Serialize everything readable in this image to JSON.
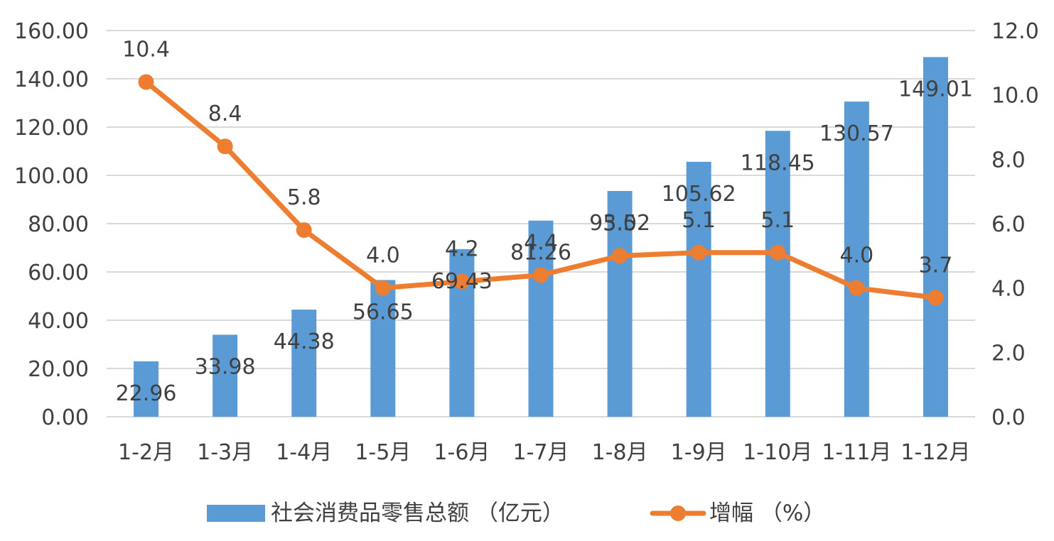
{
  "chart_data": {
    "type": "bar",
    "title": "",
    "categories": [
      "1-2月",
      "1-3月",
      "1-4月",
      "1-5月",
      "1-6月",
      "1-7月",
      "1-8月",
      "1-9月",
      "1-10月",
      "1-11月",
      "1-12月"
    ],
    "series": [
      {
        "name": "社会消费品零售总额 （亿元）",
        "type": "bar",
        "axis": "left",
        "color": "#5b9bd5",
        "values": [
          22.96,
          33.98,
          44.38,
          56.65,
          69.43,
          81.26,
          93.52,
          105.62,
          118.45,
          130.57,
          149.01
        ],
        "labels": [
          "22.96",
          "33.98",
          "44.38",
          "56.65",
          "69.43",
          "81.26",
          "93.52",
          "105.62",
          "118.45",
          "130.57",
          "149.01"
        ]
      },
      {
        "name": "增幅 （%）",
        "type": "line",
        "axis": "right",
        "color": "#ed7d31",
        "values": [
          10.4,
          8.4,
          5.8,
          4.0,
          4.2,
          4.4,
          5.0,
          5.1,
          5.1,
          4.0,
          3.7
        ],
        "labels": [
          "10.4",
          "8.4",
          "5.8",
          "4.0",
          "4.2",
          "4.4",
          "5.0",
          "5.1",
          "5.1",
          "4.0",
          "3.7"
        ]
      }
    ],
    "y_left": {
      "range": [
        0,
        160
      ],
      "ticks": [
        0,
        20,
        40,
        60,
        80,
        100,
        120,
        140,
        160
      ],
      "tick_labels": [
        "0.00",
        "20.00",
        "40.00",
        "60.00",
        "80.00",
        "100.00",
        "120.00",
        "140.00",
        "160.00"
      ]
    },
    "y_right": {
      "range": [
        0,
        12
      ],
      "ticks": [
        0,
        2,
        4,
        6,
        8,
        10,
        12
      ],
      "tick_labels": [
        "0.0",
        "2.0",
        "4.0",
        "6.0",
        "8.0",
        "10.0",
        "12.0"
      ]
    },
    "grid": true,
    "legend_position": "bottom"
  }
}
